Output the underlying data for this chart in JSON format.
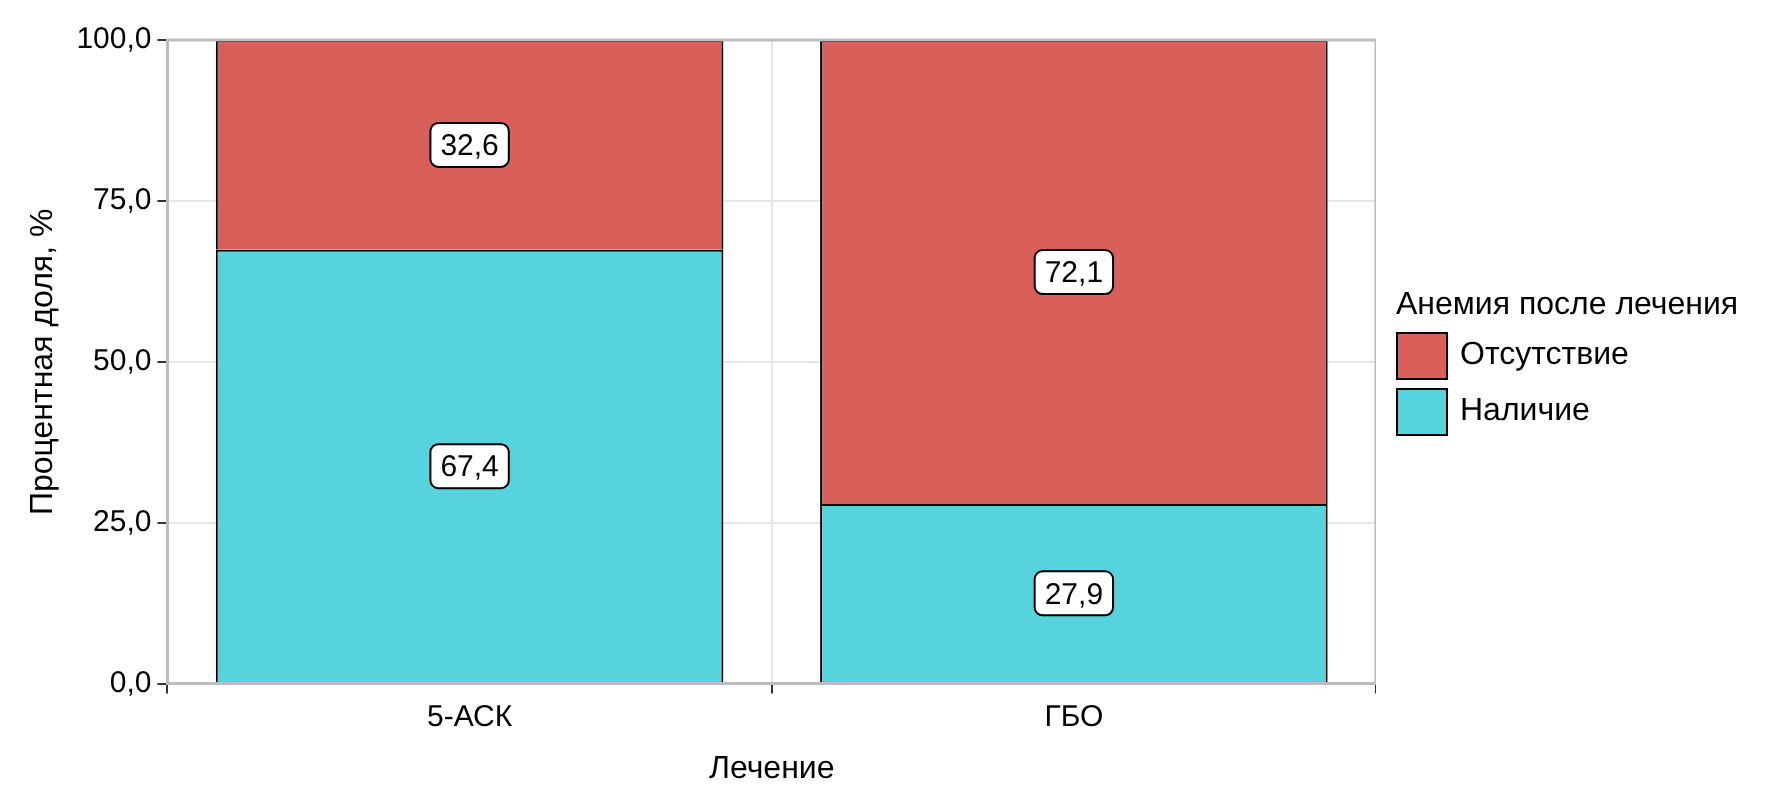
{
  "chart_data": {
    "type": "bar",
    "stacked": true,
    "xlabel": "Лечение",
    "ylabel": "Процентная доля, %",
    "legend_title": "Анемия после лечения",
    "legend": "right",
    "grid": true,
    "categories": [
      "5-АСК",
      "ГБО"
    ],
    "series": [
      {
        "name": "Наличие",
        "color": "#56d3dc",
        "values": [
          67.4,
          27.9
        ],
        "value_labels": [
          "67,4",
          "27,9"
        ]
      },
      {
        "name": "Отсутствие",
        "color": "#d9605a",
        "values": [
          32.6,
          72.1
        ],
        "value_labels": [
          "32,6",
          "72,1"
        ]
      }
    ],
    "ylim": [
      0,
      100
    ],
    "yticks": [
      {
        "value": 0,
        "label": "0,0"
      },
      {
        "value": 25,
        "label": "25,0"
      },
      {
        "value": 50,
        "label": "50,0"
      },
      {
        "value": 75,
        "label": "75,0"
      },
      {
        "value": 100,
        "label": "100,0"
      }
    ]
  }
}
